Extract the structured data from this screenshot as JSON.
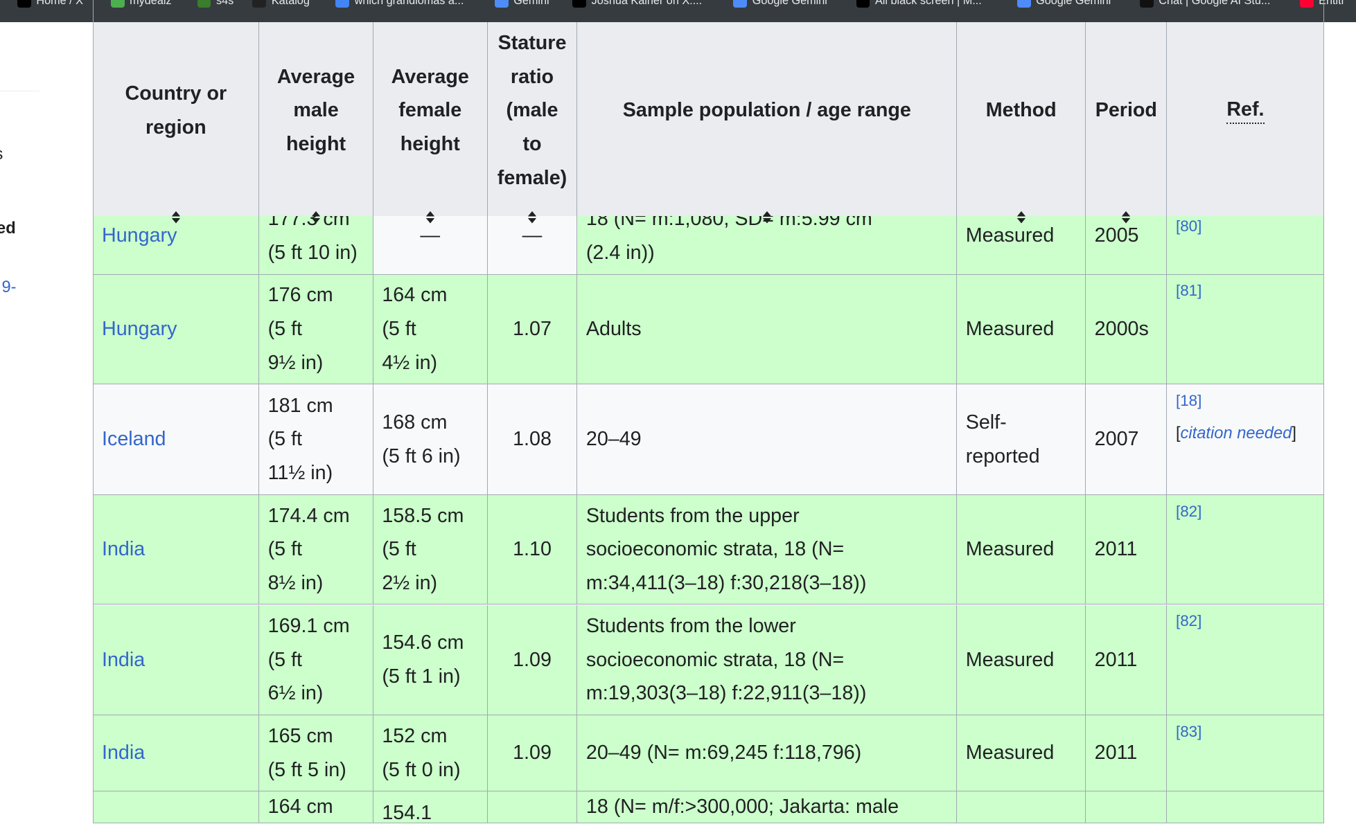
{
  "bookmarks": [
    {
      "label": "Home / X",
      "icon": "x-logo-icon",
      "color": "#000000"
    },
    {
      "label": "mydealz",
      "icon": "mydealz-icon",
      "color": "#4caf50"
    },
    {
      "label": "s4s",
      "icon": "frog-icon",
      "color": "#3a7d2c"
    },
    {
      "label": "Katalog",
      "icon": "katalog-icon",
      "color": "#222222"
    },
    {
      "label": "which grandiomas a...",
      "icon": "google-icon",
      "color": "#4285f4"
    },
    {
      "label": "Gemini",
      "icon": "gemini-icon",
      "color": "#4e8cf7"
    },
    {
      "label": "Joshua Kalner on X:...",
      "icon": "x-logo-icon",
      "color": "#000000"
    },
    {
      "label": "Google Gemini",
      "icon": "gemini-icon",
      "color": "#4e8cf7"
    },
    {
      "label": "All black screen | M...",
      "icon": "black-square-icon",
      "color": "#000000"
    },
    {
      "label": "Google Gemini",
      "icon": "gemini-icon",
      "color": "#4e8cf7"
    },
    {
      "label": "Chat | Google AI Stu...",
      "icon": "ai-studio-icon",
      "color": "#111111"
    },
    {
      "label": "Entitl",
      "icon": "youtube-icon",
      "color": "#ff0033"
    }
  ],
  "sidebar": {
    "fragment1": "s",
    "fragment2": "ed",
    "fragment3": "9-"
  },
  "table": {
    "headers": [
      {
        "label": "Country or region",
        "sortable": true
      },
      {
        "label": "Average male height",
        "sortable": true
      },
      {
        "label": "Average female height",
        "sortable": true
      },
      {
        "label": "Stature ratio (male to female)",
        "sortable": true
      },
      {
        "label": "Sample population / age range",
        "sortable": true
      },
      {
        "label": "Method",
        "sortable": true
      },
      {
        "label": "Period",
        "sortable": true
      },
      {
        "label": "Ref.",
        "sortable": false
      }
    ],
    "rows": [
      {
        "country": "Hungary",
        "male": [
          "177.3 cm",
          "(5 ft 10 in)"
        ],
        "female": [
          "—"
        ],
        "ratio": "—",
        "sample": [
          "18 (N= m:1,080, SD= m:5.99 cm",
          "(2.4 in))"
        ],
        "method": [
          "Measured"
        ],
        "period": "2005",
        "refs": [
          "[80]"
        ],
        "style": "green"
      },
      {
        "country": "Hungary",
        "male": [
          "176 cm",
          "(5 ft",
          "9½ in)"
        ],
        "female": [
          "164 cm",
          "(5 ft",
          "4½ in)"
        ],
        "ratio": "1.07",
        "sample": [
          "Adults"
        ],
        "method": [
          "Measured"
        ],
        "period": "2000s",
        "refs": [
          "[81]"
        ],
        "style": "green"
      },
      {
        "country": "Iceland",
        "male": [
          "181 cm",
          "(5 ft",
          "11½ in)"
        ],
        "female": [
          "168 cm",
          "(5 ft 6 in)"
        ],
        "ratio": "1.08",
        "sample": [
          "20–49"
        ],
        "method": [
          "Self-",
          "reported"
        ],
        "period": "2007",
        "refs": [
          "[18]"
        ],
        "citation": "citation needed",
        "style": "plain"
      },
      {
        "country": "India",
        "male": [
          "174.4 cm",
          "(5 ft",
          "8½ in)"
        ],
        "female": [
          "158.5 cm",
          "(5 ft",
          "2½ in)"
        ],
        "ratio": "1.10",
        "sample": [
          "Students from the upper",
          "socioeconomic strata, 18 (N=",
          "m:34,411(3–18) f:30,218(3–18))"
        ],
        "method": [
          "Measured"
        ],
        "period": "2011",
        "refs": [
          "[82]"
        ],
        "style": "green"
      },
      {
        "country": "India",
        "male": [
          "169.1 cm",
          "(5 ft",
          "6½ in)"
        ],
        "female": [
          "154.6 cm",
          "(5 ft 1 in)"
        ],
        "ratio": "1.09",
        "sample": [
          "Students from the lower",
          "socioeconomic strata, 18 (N=",
          "m:19,303(3–18) f:22,911(3–18))"
        ],
        "method": [
          "Measured"
        ],
        "period": "2011",
        "refs": [
          "[82]"
        ],
        "style": "green"
      },
      {
        "country": "India",
        "male": [
          "165 cm",
          "(5 ft 5 in)"
        ],
        "female": [
          "152 cm",
          "(5 ft 0 in)"
        ],
        "ratio": "1.09",
        "sample": [
          "20–49 (N= m:69,245 f:118,796)"
        ],
        "method": [
          "Measured"
        ],
        "period": "2011",
        "refs": [
          "[83]"
        ],
        "style": "green"
      },
      {
        "country": "",
        "male": [
          "164 cm"
        ],
        "female": [
          "",
          "154.1"
        ],
        "ratio": "",
        "sample": [
          "18 (N= m/f:>300,000; Jakarta: male"
        ],
        "method": [
          ""
        ],
        "period": "",
        "refs": [],
        "style": "green"
      }
    ]
  },
  "colors": {
    "link": "#3366cc",
    "header_bg": "#eaecf0",
    "row_green": "#ccffcc",
    "row_plain": "#f8f9fa",
    "border": "#a2a9b1",
    "bookmark_bar": "#353b3e"
  }
}
